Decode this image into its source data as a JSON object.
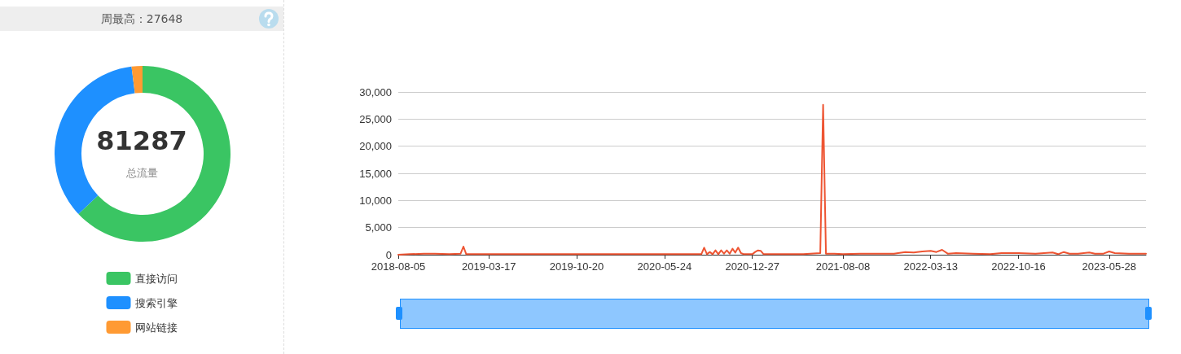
{
  "chart_data": [
    {
      "type": "donut",
      "title": "周最高：27648",
      "annotations": [
        "81287",
        "总流量"
      ],
      "categories": [
        "直接访问",
        "搜索引擎",
        "网站链接"
      ],
      "values": [
        63,
        35,
        2
      ],
      "colors": [
        "#3ac563",
        "#1e90ff",
        "#ff9a33"
      ],
      "legend": "bottom"
    },
    {
      "type": "line",
      "x": [
        "2018-08-05",
        "2018-09-02",
        "2018-10-07",
        "2018-11-04",
        "2018-12-09",
        "2019-01-06",
        "2019-01-13",
        "2019-01-20",
        "2019-02-17",
        "2019-03-17",
        "2019-06-02",
        "2019-08-04",
        "2019-10-20",
        "2020-01-05",
        "2020-03-15",
        "2020-05-24",
        "2020-07-26",
        "2020-08-23",
        "2020-08-30",
        "2020-09-06",
        "2020-09-13",
        "2020-09-20",
        "2020-09-27",
        "2020-10-04",
        "2020-10-11",
        "2020-10-18",
        "2020-10-25",
        "2020-11-01",
        "2020-11-08",
        "2020-11-15",
        "2020-11-22",
        "2020-11-29",
        "2020-12-06",
        "2020-12-27",
        "2021-01-03",
        "2021-01-10",
        "2021-01-17",
        "2021-01-24",
        "2021-03-07",
        "2021-05-02",
        "2021-06-13",
        "2021-06-20",
        "2021-06-27",
        "2021-07-18",
        "2021-08-08",
        "2021-09-19",
        "2021-10-31",
        "2021-12-12",
        "2022-01-09",
        "2022-01-30",
        "2022-02-20",
        "2022-03-13",
        "2022-03-27",
        "2022-04-10",
        "2022-04-24",
        "2022-05-15",
        "2022-06-26",
        "2022-08-07",
        "2022-09-04",
        "2022-10-16",
        "2022-11-27",
        "2023-01-08",
        "2023-01-22",
        "2023-02-05",
        "2023-02-19",
        "2023-03-12",
        "2023-04-09",
        "2023-04-23",
        "2023-05-14",
        "2023-05-28",
        "2023-06-11",
        "2023-07-16",
        "2023-08-27"
      ],
      "series": [
        {
          "color": "#ee5533",
          "values": [
            0,
            100,
            200,
            200,
            100,
            200,
            1500,
            100,
            100,
            100,
            100,
            100,
            100,
            100,
            100,
            100,
            100,
            100,
            1300,
            100,
            500,
            100,
            800,
            100,
            800,
            200,
            800,
            200,
            1100,
            400,
            1300,
            300,
            100,
            100,
            500,
            800,
            700,
            100,
            100,
            100,
            300,
            27648,
            200,
            200,
            100,
            200,
            200,
            200,
            500,
            400,
            600,
            700,
            500,
            900,
            200,
            300,
            200,
            100,
            300,
            300,
            200,
            400,
            100,
            500,
            200,
            200,
            400,
            200,
            200,
            600,
            300,
            200,
            200
          ]
        }
      ],
      "xlim": [
        "2018-08-05",
        "2023-08-27"
      ],
      "xticks": [
        "2018-08-05",
        "2019-03-17",
        "2019-10-20",
        "2020-05-24",
        "2020-12-27",
        "2021-08-08",
        "2022-03-13",
        "2022-10-16",
        "2023-05-28"
      ],
      "ylim": [
        0,
        30000
      ],
      "yticks": [
        0,
        {
          "value": 5000,
          "label": "5,000"
        },
        {
          "value": 10000,
          "label": "10,000"
        },
        {
          "value": 15000,
          "label": "15,000"
        },
        {
          "value": 20000,
          "label": "20,000"
        },
        {
          "value": 25000,
          "label": "25,000"
        },
        {
          "value": 30000,
          "label": "30,000"
        }
      ],
      "grid": "y",
      "line_style": "solid"
    }
  ]
}
